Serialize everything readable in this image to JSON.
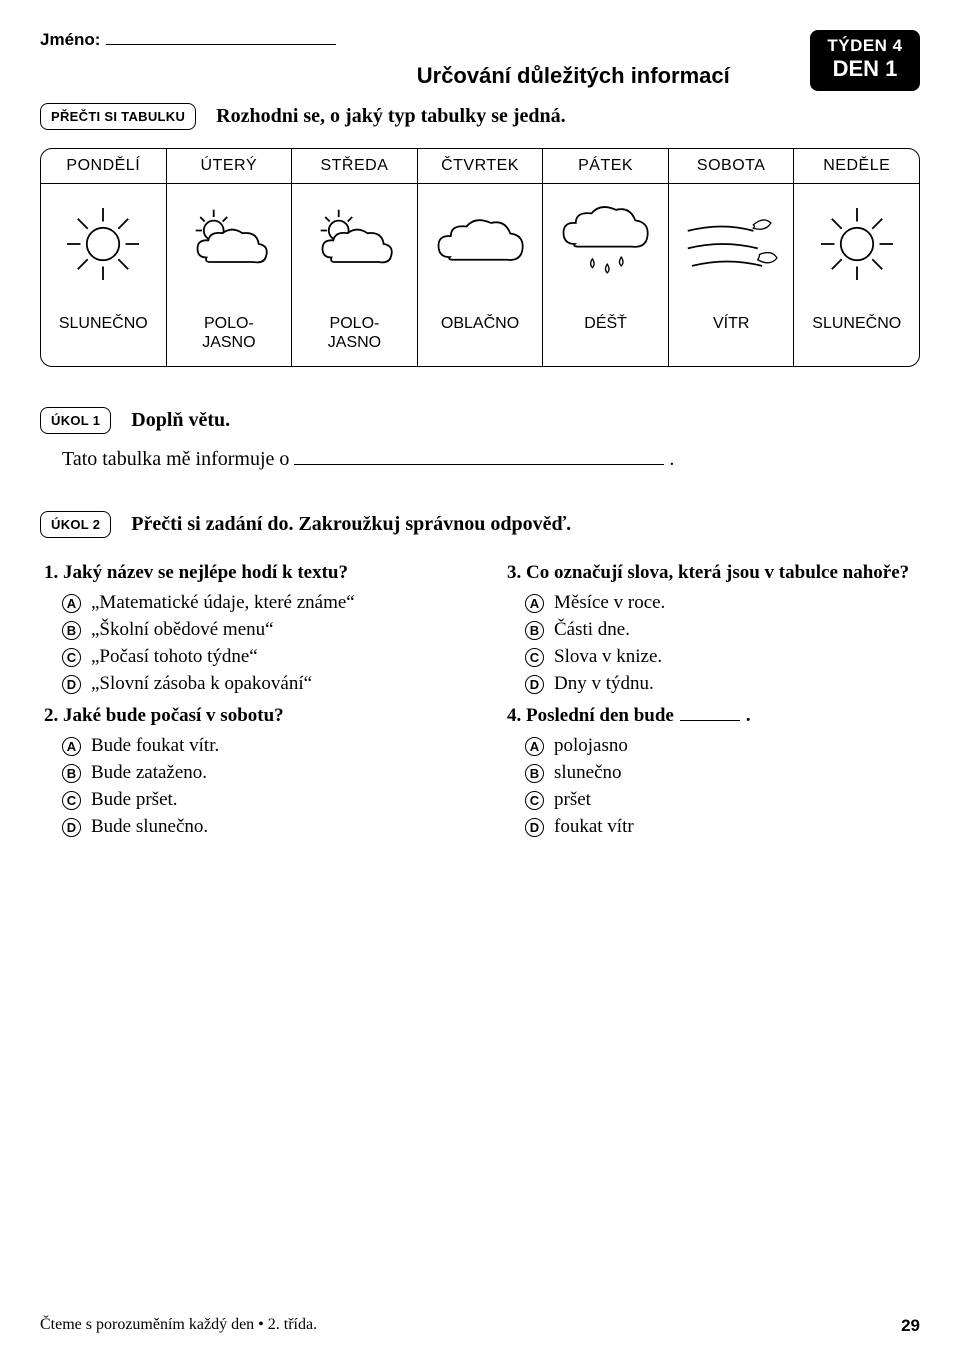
{
  "header": {
    "name_label": "Jméno:",
    "title": "Určování důležitých informací",
    "badge_l1": "TÝDEN 4",
    "badge_l2": "DEN 1",
    "read_table_pill": "PŘEČTI SI TABULKU",
    "instruction": "Rozhodni se, o jaký typ tabulky se jedná."
  },
  "weather": {
    "days": [
      "PONDĚLÍ",
      "ÚTERÝ",
      "STŘEDA",
      "ČTVRTEK",
      "PÁTEK",
      "SOBOTA",
      "NEDĚLE"
    ],
    "labels": [
      "SLUNEČNO",
      "POLO-\nJASNO",
      "POLO-\nJASNO",
      "OBLAČNO",
      "DÉŠŤ",
      "VÍTR",
      "SLUNEČNO"
    ]
  },
  "task1": {
    "pill": "ÚKOL 1",
    "instruction": "Doplň větu.",
    "sentence": "Tato tabulka mě informuje o",
    "period": "."
  },
  "task2": {
    "pill": "ÚKOL 2",
    "instruction": "Přečti si zadání do. Zakroužkuj správnou odpověď."
  },
  "q1": {
    "text": "1. Jaký název se nejlépe hodí k textu?",
    "A": "„Matematické údaje, které známe“",
    "B": "„Školní obědové menu“",
    "C": "„Počasí tohoto týdne“",
    "D": "„Slovní zásoba k opakování“"
  },
  "q2": {
    "text": "2. Jaké bude počasí v sobotu?",
    "A": "Bude foukat vítr.",
    "B": "Bude zataženo.",
    "C": "Bude pršet.",
    "D": "Bude slunečno."
  },
  "q3": {
    "text": "3. Co označují slova, která jsou v tabulce nahoře?",
    "A": "Měsíce v roce.",
    "B": "Části dne.",
    "C": "Slova v knize.",
    "D": "Dny v týdnu."
  },
  "q4": {
    "text_pre": "4. Poslední den bude",
    "text_post": ".",
    "A": "polojasno",
    "B": "slunečno",
    "C": "pršet",
    "D": "foukat vítr"
  },
  "footer": {
    "left": "Čteme s porozuměním každý den • 2. třída.",
    "page": "29"
  },
  "letters": {
    "A": "A",
    "B": "B",
    "C": "C",
    "D": "D"
  }
}
